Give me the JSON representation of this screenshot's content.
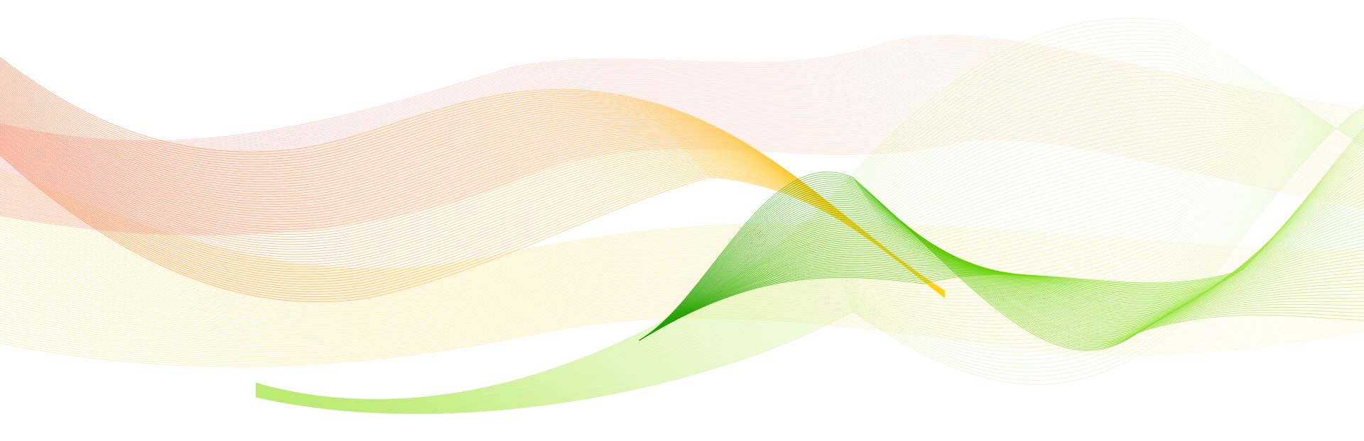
{
  "artwork": {
    "type": "abstract-line-waves",
    "background": "#ffffff",
    "ribbons": [
      {
        "name": "orange-ribbon",
        "colors": [
          "#ff5a1f",
          "#ffa21a",
          "#ffd21a"
        ]
      },
      {
        "name": "pink-ribbon",
        "colors": [
          "#ff8a80",
          "#ffc3b5",
          "#fff0c0"
        ]
      },
      {
        "name": "yellow-ribbon",
        "colors": [
          "#ffe27a",
          "#ffeaa5",
          "#fff4d6"
        ]
      },
      {
        "name": "light-green-ribbon",
        "colors": [
          "#b8ea6c",
          "#d6f39d",
          "#eefad8"
        ]
      },
      {
        "name": "green-ribbon",
        "colors": [
          "#1a9b00",
          "#6cd600",
          "#c8f07a"
        ]
      }
    ]
  }
}
